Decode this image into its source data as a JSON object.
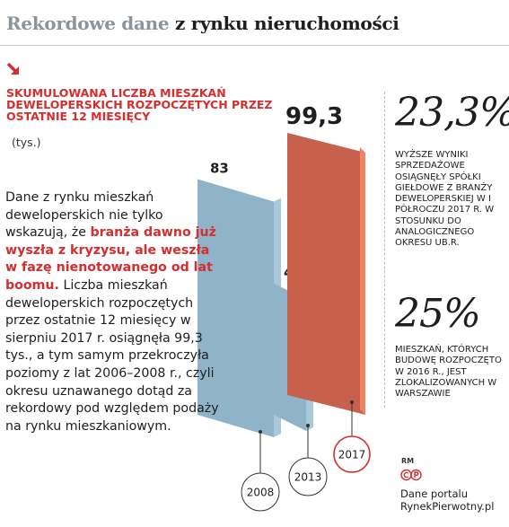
{
  "header": {
    "title_part1": "Rekordowe dane",
    "title_part2": " z rynku nieruchomości"
  },
  "chart_data": {
    "type": "bar",
    "title": "SKUMULOWANA LICZBA MIESZKAŃ DEWELOPERSKICH ROZPOCZĘTYCH PRZEZ OSTATNIE 12 MIESIĘCY",
    "unit": "(tys.)",
    "categories": [
      "2008",
      "2013",
      "2017"
    ],
    "values": [
      83,
      46.3,
      99.3
    ],
    "value_labels": [
      "83",
      "46,3",
      "99,3"
    ],
    "highlight_category": "2017",
    "ylim": [
      0,
      100
    ],
    "colors": {
      "default": "#8fb3c8",
      "highlight": "#c8604e",
      "highlight_front": "#f08266"
    }
  },
  "body_text": {
    "part1": "Dane z rynku mieszkań deweloperskich nie tylko wskazują, że ",
    "highlight": "branża dawno już wyszła z kryzysu, ale weszła w fazę nienotowanego od lat boomu.",
    "part2": " Liczba mieszkań deweloperskich rozpoczętych przez ostatnie 12 miesięcy w sierpniu 2017 r. osiągnęła 99,3 tys., a tym samym przekroczyła poziomy z lat 2006–2008 r., czyli okresu uznawanego dotąd za rekordowy pod względem podaży na rynku mieszkaniowym."
  },
  "sidebar": {
    "stat1_value": "23,3%",
    "stat1_text": "WYŻSZE WYNIKI SPRZEDAŻOWE OSIĄGNĘŁY SPÓŁKI GIEŁDOWE Z BRANŻY DEWELOPERSKIEJ W I PÓŁROCZU 2017 R. W STOSUNKU DO ANALOGICZNEGO OKRESU UB.R.",
    "stat2_value": "25%",
    "stat2_text": "MIESZKAŃ, KTÓRYCH BUDOWĘ ROZPOCZĘTO W 2016 R., JEST ZLOKALIZOWANYCH W WARSZAWIE"
  },
  "footer": {
    "initials": "RM",
    "source_line1": "Dane portalu",
    "source_line2": "RynekPierwotny.pl"
  }
}
